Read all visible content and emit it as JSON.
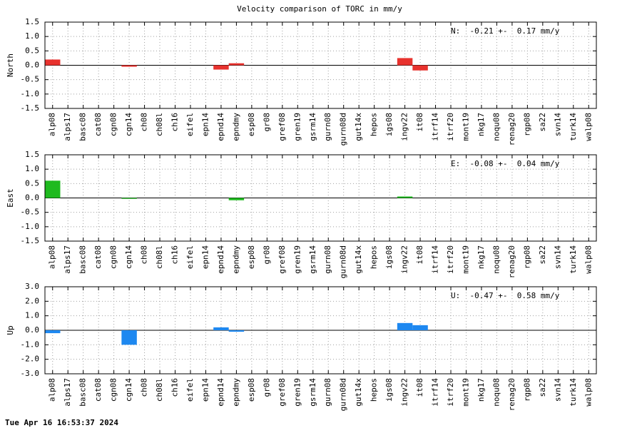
{
  "title": "Velocity comparison of TORC in mm/y",
  "footer": "Tue Apr 16 16:53:37 2024",
  "chart_data": [
    {
      "type": "bar",
      "ylabel": "North",
      "annotation": "N:  -0.21 +-  0.17 mm/y",
      "color": "#e8322e",
      "categories": [
        "alp08",
        "alps17",
        "basc08",
        "cat08",
        "cgn08",
        "cgn14",
        "ch08",
        "ch08l",
        "ch16",
        "eifel",
        "epn14",
        "epnd14",
        "epndmy",
        "esp08",
        "gr08",
        "gref08",
        "gren19",
        "gsrm14",
        "gurn08",
        "gurn08d",
        "gut14x",
        "hepos",
        "igs08",
        "ingv22",
        "it08",
        "itrf14",
        "itrf20",
        "mont19",
        "nkg17",
        "noqu08",
        "renag20",
        "rgp08",
        "sa22",
        "svn14",
        "turk14",
        "walp08"
      ],
      "values": [
        0.2,
        0,
        0,
        0,
        0,
        -0.05,
        0,
        0,
        0,
        0,
        0,
        -0.15,
        0.07,
        0,
        0,
        0,
        0,
        0,
        0,
        0,
        0,
        0,
        0,
        0.25,
        -0.18,
        0,
        0,
        0,
        0,
        0,
        0,
        0,
        0,
        0,
        0,
        0
      ],
      "ylim": [
        -1.5,
        1.5
      ],
      "yticks": [
        1.5,
        {
          "value": 1,
          "label": "1.0"
        },
        0.5,
        {
          "value": 0,
          "label": "0.0"
        },
        -0.5,
        {
          "value": -1,
          "label": "-1.0"
        },
        -1.5
      ],
      "grid": true
    },
    {
      "type": "bar",
      "ylabel": "East",
      "annotation": "E:  -0.08 +-  0.04 mm/y",
      "color": "#1fba1f",
      "categories": [
        "alp08",
        "alps17",
        "basc08",
        "cat08",
        "cgn08",
        "cgn14",
        "ch08",
        "ch08l",
        "ch16",
        "eifel",
        "epn14",
        "epnd14",
        "epndmy",
        "esp08",
        "gr08",
        "gref08",
        "gren19",
        "gsrm14",
        "gurn08",
        "gurn08d",
        "gut14x",
        "hepos",
        "igs08",
        "ingv22",
        "it08",
        "itrf14",
        "itrf20",
        "mont19",
        "nkg17",
        "noqu08",
        "renag20",
        "rgp08",
        "sa22",
        "svn14",
        "turk14",
        "walp08"
      ],
      "values": [
        0.6,
        0,
        0,
        0,
        0,
        -0.03,
        0,
        0,
        0,
        0,
        0,
        0,
        -0.08,
        0,
        0,
        0,
        0,
        0,
        0,
        0,
        0,
        0,
        0,
        0.05,
        0,
        0,
        0,
        0,
        0,
        0,
        0,
        0,
        0,
        0,
        0,
        0
      ],
      "ylim": [
        -1.5,
        1.5
      ],
      "yticks": [
        1.5,
        {
          "value": 1,
          "label": "1.0"
        },
        0.5,
        {
          "value": 0,
          "label": "0.0"
        },
        -0.5,
        {
          "value": -1,
          "label": "-1.0"
        },
        -1.5
      ],
      "grid": true
    },
    {
      "type": "bar",
      "ylabel": "Up",
      "annotation": "U:  -0.47 +-  0.58 mm/y",
      "color": "#1e88f0",
      "categories": [
        "alp08",
        "alps17",
        "basc08",
        "cat08",
        "cgn08",
        "cgn14",
        "ch08",
        "ch08l",
        "ch16",
        "eifel",
        "epn14",
        "epnd14",
        "epndmy",
        "esp08",
        "gr08",
        "gref08",
        "gren19",
        "gsrm14",
        "gurn08",
        "gurn08d",
        "gut14x",
        "hepos",
        "igs08",
        "ingv22",
        "it08",
        "itrf14",
        "itrf20",
        "mont19",
        "nkg17",
        "noqu08",
        "renag20",
        "rgp08",
        "sa22",
        "svn14",
        "turk14",
        "walp08"
      ],
      "values": [
        -0.2,
        0,
        0,
        0,
        0,
        -1.0,
        0,
        0,
        0,
        0,
        0,
        0.2,
        -0.1,
        0,
        0,
        0,
        0,
        0,
        0,
        0,
        0,
        0,
        0,
        0.5,
        0.35,
        0,
        0,
        0,
        0,
        0,
        0,
        0,
        0,
        0,
        0,
        0
      ],
      "ylim": [
        -3,
        3
      ],
      "yticks": [
        {
          "value": 3,
          "label": "3.0"
        },
        {
          "value": 2,
          "label": "2.0"
        },
        {
          "value": 1,
          "label": "1.0"
        },
        {
          "value": 0,
          "label": "0.0"
        },
        {
          "value": -1,
          "label": "-1.0"
        },
        {
          "value": -2,
          "label": "-2.0"
        },
        {
          "value": -3,
          "label": "-3.0"
        }
      ],
      "grid": true
    }
  ]
}
